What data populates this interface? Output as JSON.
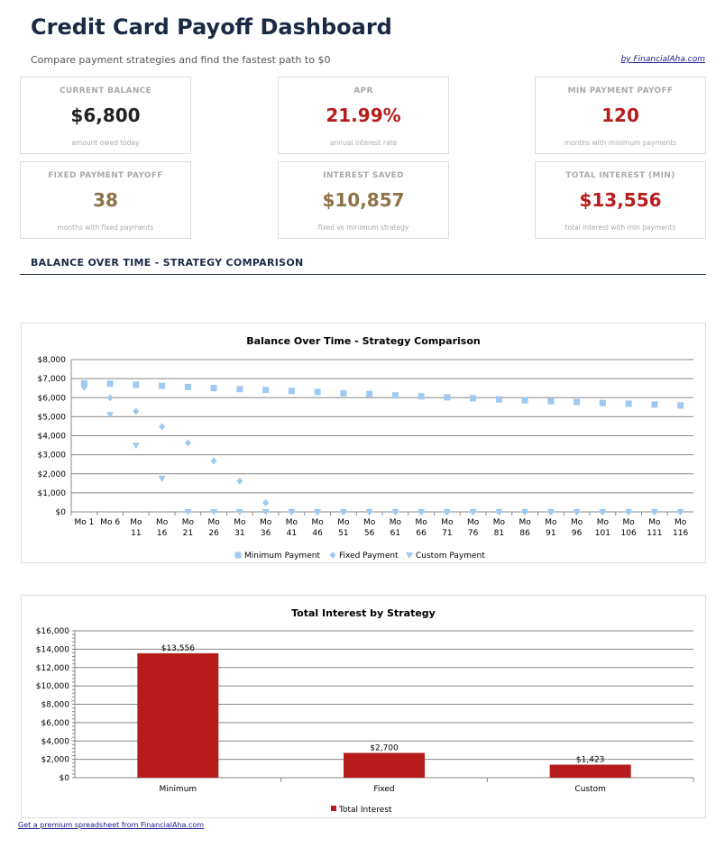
{
  "header": {
    "title": "Credit Card Payoff Dashboard",
    "subtitle": "Compare payment strategies and find the fastest path to $0",
    "byline": "by FinancialAha.com"
  },
  "cards": [
    {
      "label": "CURRENT BALANCE",
      "value": "$6,800",
      "sub": "amount owed today",
      "color": "#222222"
    },
    {
      "label": "APR",
      "value": "21.99%",
      "sub": "annual interest rate",
      "color": "#b71c1c"
    },
    {
      "label": "MIN PAYMENT PAYOFF",
      "value": "120",
      "sub": "months with minimum payments",
      "color": "#b71c1c"
    },
    {
      "label": "FIXED PAYMENT PAYOFF",
      "value": "38",
      "sub": "months with fixed payments",
      "color": "#8f7248"
    },
    {
      "label": "INTEREST SAVED",
      "value": "$10,857",
      "sub": "fixed vs minimum strategy",
      "color": "#8f7248"
    },
    {
      "label": "TOTAL INTEREST (MIN)",
      "value": "$13,556",
      "sub": "total interest with min payments",
      "color": "#b71c1c"
    }
  ],
  "section_title": "BALANCE OVER TIME - STRATEGY COMPARISON",
  "chart_data": [
    {
      "type": "scatter",
      "title": "Balance Over Time - Strategy Comparison",
      "ylim": [
        0,
        8000
      ],
      "yticks": [
        "$0",
        "$1,000",
        "$2,000",
        "$3,000",
        "$4,000",
        "$5,000",
        "$6,000",
        "$7,000",
        "$8,000"
      ],
      "categories": [
        "Mo 1",
        "Mo 6",
        "Mo 11",
        "Mo 16",
        "Mo 21",
        "Mo 26",
        "Mo 31",
        "Mo 36",
        "Mo 41",
        "Mo 46",
        "Mo 51",
        "Mo 56",
        "Mo 61",
        "Mo 66",
        "Mo 71",
        "Mo 76",
        "Mo 81",
        "Mo 86",
        "Mo 91",
        "Mo 96",
        "Mo 101",
        "Mo 106",
        "Mo 111",
        "Mo 116"
      ],
      "series": [
        {
          "name": "Minimum Payment",
          "marker": "square",
          "color": "#9ec9f0",
          "values": [
            6750,
            6730,
            6680,
            6620,
            6560,
            6500,
            6450,
            6400,
            6350,
            6300,
            6230,
            6190,
            6120,
            6070,
            6020,
            5970,
            5910,
            5860,
            5810,
            5770,
            5720,
            5680,
            5640,
            5590
          ]
        },
        {
          "name": "Fixed Payment",
          "marker": "diamond",
          "color": "#9ec9f0",
          "values": [
            6550,
            6000,
            5280,
            4480,
            3620,
            2680,
            1620,
            480,
            0,
            0,
            0,
            0,
            0,
            0,
            0,
            0,
            0,
            0,
            0,
            0,
            0,
            0,
            0,
            0
          ]
        },
        {
          "name": "Custom Payment",
          "marker": "triangle-down",
          "color": "#9ec9f0",
          "values": [
            6600,
            5100,
            3500,
            1750,
            0,
            0,
            0,
            0,
            0,
            0,
            0,
            0,
            0,
            0,
            0,
            0,
            0,
            0,
            0,
            0,
            0,
            0,
            0,
            0
          ]
        }
      ],
      "grid": true,
      "legend": "bottom"
    },
    {
      "type": "bar",
      "title": "Total Interest by Strategy",
      "ylim": [
        0,
        16000
      ],
      "yticks": [
        "$0",
        "$2,000",
        "$4,000",
        "$6,000",
        "$8,000",
        "$10,000",
        "$12,000",
        "$14,000",
        "$16,000"
      ],
      "categories": [
        "Minimum",
        "Fixed",
        "Custom"
      ],
      "series": [
        {
          "name": "Total Interest",
          "color": "#b71c1c",
          "values": [
            13556,
            2700,
            1423
          ]
        }
      ],
      "labels": [
        "$13,556",
        "$2,700",
        "$1,423"
      ],
      "grid": true,
      "legend": "bottom"
    }
  ],
  "footer": {
    "link": "Get a premium spreadsheet from FinancialAha.com"
  }
}
